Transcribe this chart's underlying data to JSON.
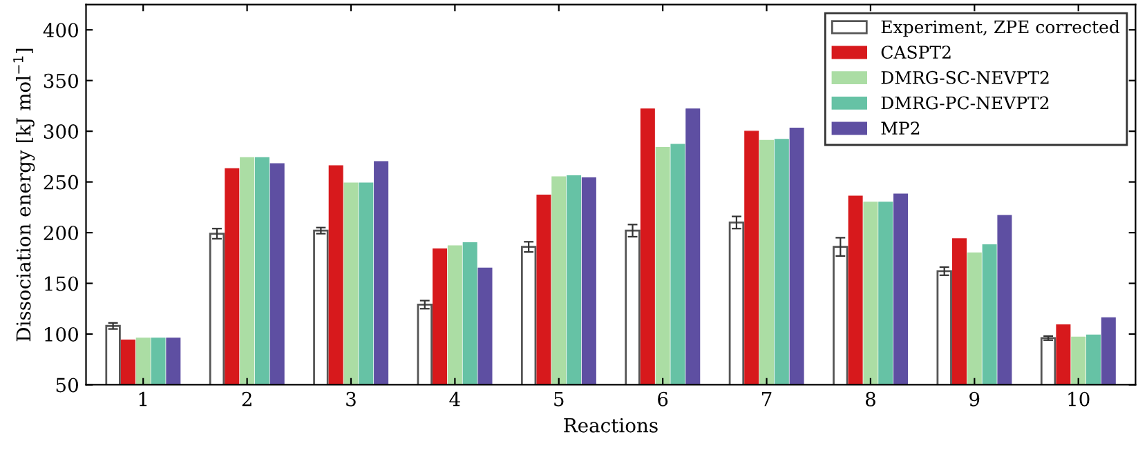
{
  "chart_data": {
    "type": "bar",
    "xlabel": "Reactions",
    "ylabel": "Dissociation energy [kJ mol$^{−1}$]",
    "categories": [
      "1",
      "2",
      "3",
      "4",
      "5",
      "6",
      "7",
      "8",
      "9",
      "10"
    ],
    "ylim": [
      50,
      425
    ],
    "yticks": [
      50,
      100,
      150,
      200,
      250,
      300,
      350,
      400
    ],
    "grid": false,
    "legend": "top right",
    "series": [
      {
        "name": "Experiment, ZPE corrected",
        "color": "#ffffff",
        "values": [
          108,
          199,
          202,
          129,
          186,
          202,
          210,
          186,
          162,
          96
        ],
        "errors": [
          3,
          5,
          3,
          4,
          5,
          6,
          6,
          9,
          4,
          2
        ]
      },
      {
        "name": "CASPT2",
        "color": "#d7191c",
        "values": [
          94,
          263,
          266,
          184,
          237,
          322,
          300,
          236,
          194,
          109
        ]
      },
      {
        "name": "DMRG-SC-NEVPT2",
        "color": "#abdda4",
        "values": [
          96,
          274,
          249,
          187,
          255,
          284,
          291,
          230,
          180,
          97
        ]
      },
      {
        "name": "DMRG-PC-NEVPT2",
        "color": "#66c2a5",
        "values": [
          96,
          274,
          249,
          190,
          256,
          287,
          292,
          230,
          188,
          99
        ]
      },
      {
        "name": "MP2",
        "color": "#5e4fa2",
        "values": [
          96,
          268,
          270,
          165,
          254,
          322,
          303,
          238,
          217,
          116
        ]
      }
    ]
  }
}
